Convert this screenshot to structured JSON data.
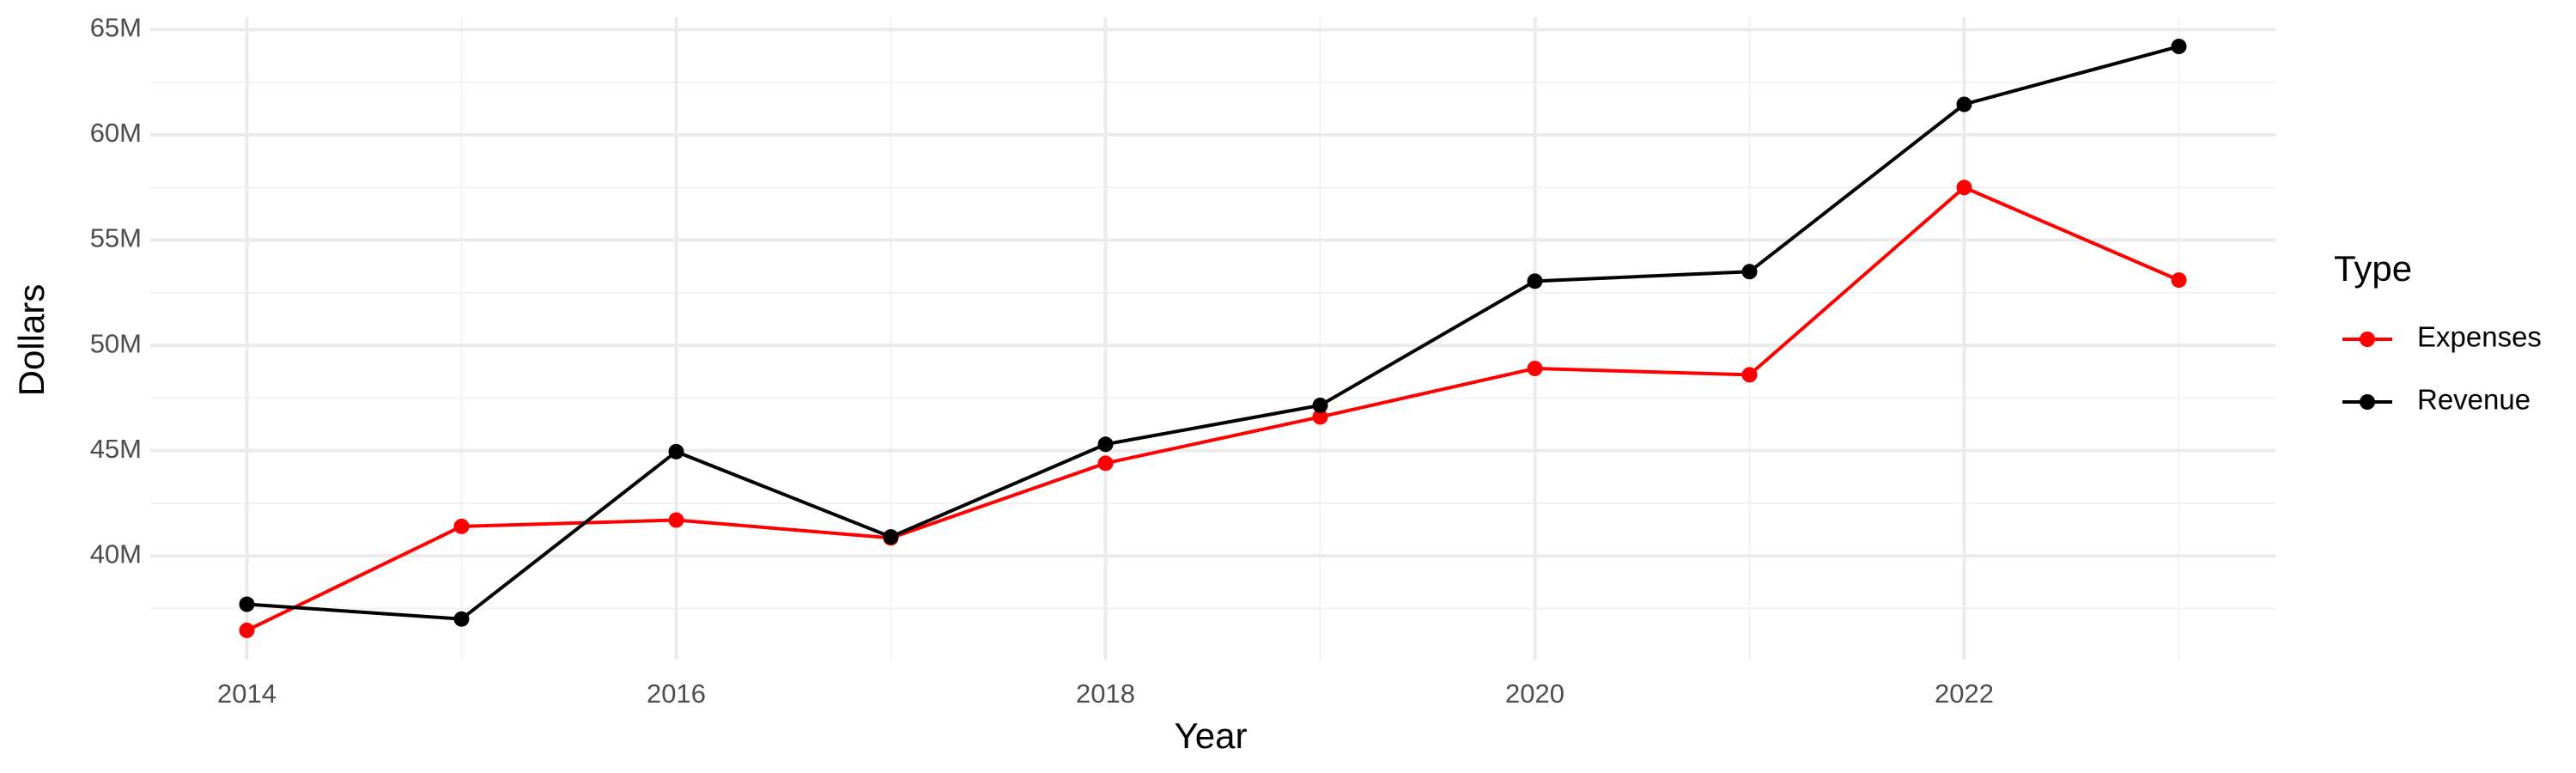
{
  "chart_data": {
    "type": "line",
    "x_label": "Year",
    "y_label": "Dollars",
    "legend_title": "Type",
    "legend_position": "right",
    "grid": true,
    "x": [
      2014,
      2015,
      2016,
      2017,
      2018,
      2019,
      2020,
      2021,
      2022,
      2023
    ],
    "xlim": [
      2013.55,
      2023.45
    ],
    "xticks": [
      2014,
      2016,
      2018,
      2020,
      2022
    ],
    "ylim": [
      35070000,
      65590000
    ],
    "yticks": [
      {
        "value": 40000000,
        "label": "40M"
      },
      {
        "value": 45000000,
        "label": "45M"
      },
      {
        "value": 50000000,
        "label": "50M"
      },
      {
        "value": 55000000,
        "label": "55M"
      },
      {
        "value": 60000000,
        "label": "60M"
      },
      {
        "value": 65000000,
        "label": "65M"
      }
    ],
    "series": [
      {
        "name": "Expenses",
        "color": "#ff0000",
        "values": [
          36460000,
          41400000,
          41700000,
          40850000,
          44400000,
          46600000,
          48900000,
          48600000,
          57500000,
          53100000
        ]
      },
      {
        "name": "Revenue",
        "color": "#000000",
        "values": [
          37700000,
          37000000,
          44950000,
          40900000,
          45300000,
          47150000,
          53050000,
          53500000,
          61450000,
          64200000
        ]
      }
    ]
  }
}
